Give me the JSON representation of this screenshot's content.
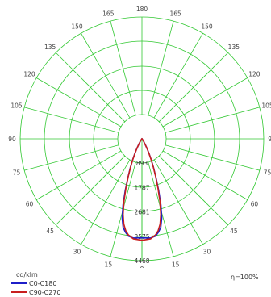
{
  "chart_data": {
    "type": "polar",
    "unit_label": "cd/klm",
    "efficiency_label": "η=100%",
    "angle_labels": [
      {
        "deg": 180,
        "text": "180"
      },
      {
        "deg": 165,
        "text": "165"
      },
      {
        "deg": 150,
        "text": "150"
      },
      {
        "deg": 135,
        "text": "135"
      },
      {
        "deg": 120,
        "text": "120"
      },
      {
        "deg": 105,
        "text": "105"
      },
      {
        "deg": 90,
        "text": "90"
      },
      {
        "deg": 75,
        "text": "75"
      },
      {
        "deg": 60,
        "text": "60"
      },
      {
        "deg": 45,
        "text": "45"
      },
      {
        "deg": 30,
        "text": "30"
      },
      {
        "deg": 15,
        "text": "15"
      },
      {
        "deg": 0,
        "text": "0"
      }
    ],
    "ring_labels": [
      "893",
      "1787",
      "2681",
      "3575",
      "4468"
    ],
    "rmax": 4468,
    "inner_ring_value": 893,
    "grid": true,
    "legend_position": "bottom-left",
    "series": [
      {
        "name": "C0-C180",
        "color": "#1e1ec8",
        "points": [
          [
            0,
            3630
          ],
          [
            5,
            3650
          ],
          [
            8,
            3600
          ],
          [
            10,
            3480
          ],
          [
            12,
            3320
          ],
          [
            14,
            3000
          ],
          [
            16,
            2520
          ],
          [
            18,
            1980
          ],
          [
            20,
            1500
          ],
          [
            22,
            1130
          ],
          [
            24,
            830
          ],
          [
            26,
            590
          ],
          [
            28,
            390
          ],
          [
            30,
            230
          ],
          [
            33,
            120
          ],
          [
            36,
            60
          ],
          [
            40,
            30
          ],
          [
            45,
            15
          ],
          [
            60,
            8
          ],
          [
            90,
            5
          ],
          [
            120,
            5
          ],
          [
            150,
            6
          ],
          [
            180,
            8
          ]
        ]
      },
      {
        "name": "C90-C270",
        "color": "#c81e1e",
        "points": [
          [
            0,
            3720
          ],
          [
            5,
            3680
          ],
          [
            8,
            3560
          ],
          [
            10,
            3420
          ],
          [
            12,
            3200
          ],
          [
            14,
            2860
          ],
          [
            16,
            2400
          ],
          [
            18,
            1900
          ],
          [
            20,
            1460
          ],
          [
            22,
            1100
          ],
          [
            24,
            800
          ],
          [
            26,
            560
          ],
          [
            28,
            370
          ],
          [
            30,
            220
          ],
          [
            33,
            115
          ],
          [
            36,
            58
          ],
          [
            40,
            28
          ],
          [
            45,
            14
          ],
          [
            60,
            8
          ],
          [
            90,
            5
          ],
          [
            120,
            5
          ],
          [
            150,
            6
          ],
          [
            180,
            8
          ]
        ]
      }
    ]
  },
  "colors": {
    "grid": "#32c832",
    "ring_label": "#333333"
  }
}
